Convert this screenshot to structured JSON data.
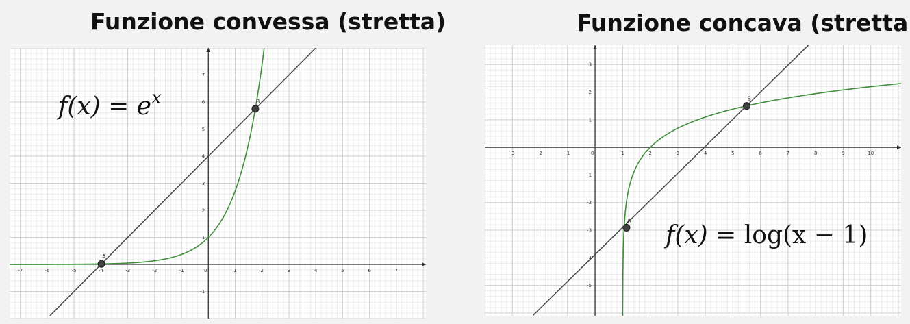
{
  "titles": {
    "left": "Funzione convessa (stretta)",
    "right": "Funzione concava (stretta)"
  },
  "formulas": {
    "left": {
      "lhs": "f(x) = e",
      "exp": "x"
    },
    "right": {
      "lhs": "f(x) = ",
      "fn": "log(x − 1)"
    }
  },
  "colors": {
    "curve": "#3e8e3a",
    "line": "#444444",
    "point": "#404040",
    "major_grid": "#cfcfcf",
    "minor_grid": "#ececec",
    "axis": "#333333"
  },
  "chart_data": [
    {
      "type": "line",
      "title": "Funzione convessa (stretta)",
      "xlim": [
        -7.4,
        8.1
      ],
      "ylim": [
        -2.0,
        8.0
      ],
      "x_ticks": [
        -7,
        -6,
        -5,
        -4,
        -3,
        -2,
        -1,
        0,
        1,
        2,
        3,
        4,
        5,
        6,
        7
      ],
      "y_ticks": [
        -1,
        1,
        2,
        3,
        4,
        5,
        6,
        7
      ],
      "grid": true,
      "series": [
        {
          "kind": "curve",
          "function": "exp",
          "x_range": [
            -7.4,
            2.15
          ]
        },
        {
          "kind": "line",
          "slope": 1,
          "intercept": 4,
          "x_range": [
            -5.9,
            4.1
          ]
        }
      ],
      "points": [
        {
          "label": "A",
          "x": -3.98,
          "y": 0.02
        },
        {
          "label": "B",
          "x": 1.75,
          "y": 5.75
        }
      ]
    },
    {
      "type": "line",
      "title": "Funzione concava (stretta)",
      "xlim": [
        -4,
        11.1
      ],
      "ylim": [
        -6.1,
        3.7
      ],
      "x_ticks": [
        -3,
        -2,
        -1,
        0,
        1,
        2,
        3,
        4,
        5,
        6,
        7,
        8,
        9,
        10
      ],
      "y_ticks": [
        -5,
        -4,
        -3,
        -2,
        -1,
        1,
        2,
        3
      ],
      "grid": true,
      "series": [
        {
          "kind": "curve",
          "function": "log(x-1)",
          "x_range": [
            1.0022,
            11.1
          ]
        },
        {
          "kind": "line",
          "slope": 0.98,
          "intercept": -3.88,
          "x_range": [
            -2.25,
            7.8
          ]
        }
      ],
      "points": [
        {
          "label": "A",
          "x": 1.14,
          "y": -2.91
        },
        {
          "label": "B",
          "x": 5.5,
          "y": 1.5
        }
      ]
    }
  ]
}
